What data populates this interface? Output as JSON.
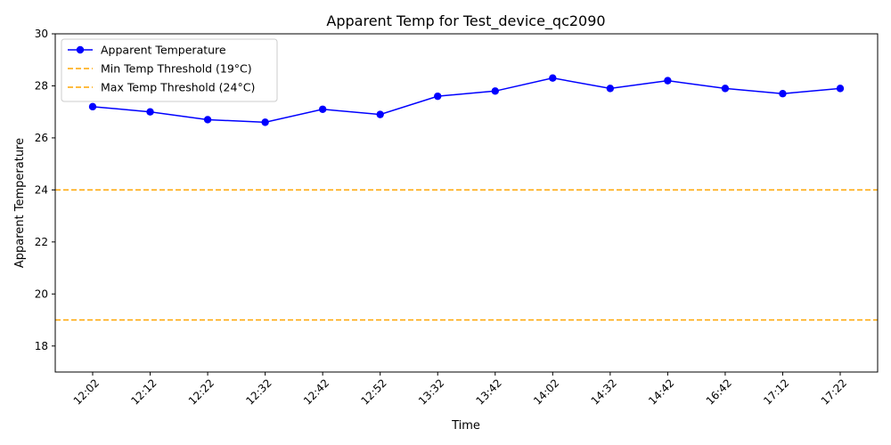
{
  "chart_data": {
    "type": "line",
    "title": "Apparent Temp for Test_device_qc2090",
    "xlabel": "Time",
    "ylabel": "Apparent Temperature",
    "categories": [
      "12:02",
      "12:12",
      "12:22",
      "12:32",
      "12:42",
      "12:52",
      "13:32",
      "13:42",
      "14:02",
      "14:32",
      "14:42",
      "16:42",
      "17:12",
      "17:22"
    ],
    "series": [
      {
        "name": "Apparent Temperature",
        "color": "#0000ff",
        "values": [
          27.2,
          27.0,
          26.7,
          26.6,
          27.1,
          26.9,
          27.6,
          27.8,
          28.3,
          27.9,
          28.2,
          27.9,
          27.7,
          27.9
        ]
      }
    ],
    "thresholds": [
      {
        "name": "Min Temp Threshold (19°C)",
        "value": 19,
        "color": "#ffa500"
      },
      {
        "name": "Max Temp Threshold (24°C)",
        "value": 24,
        "color": "#ffa500"
      }
    ],
    "ylim": [
      17,
      30
    ],
    "yticks": [
      18,
      20,
      22,
      24,
      26,
      28,
      30
    ],
    "grid": false,
    "legend": "top-left"
  }
}
